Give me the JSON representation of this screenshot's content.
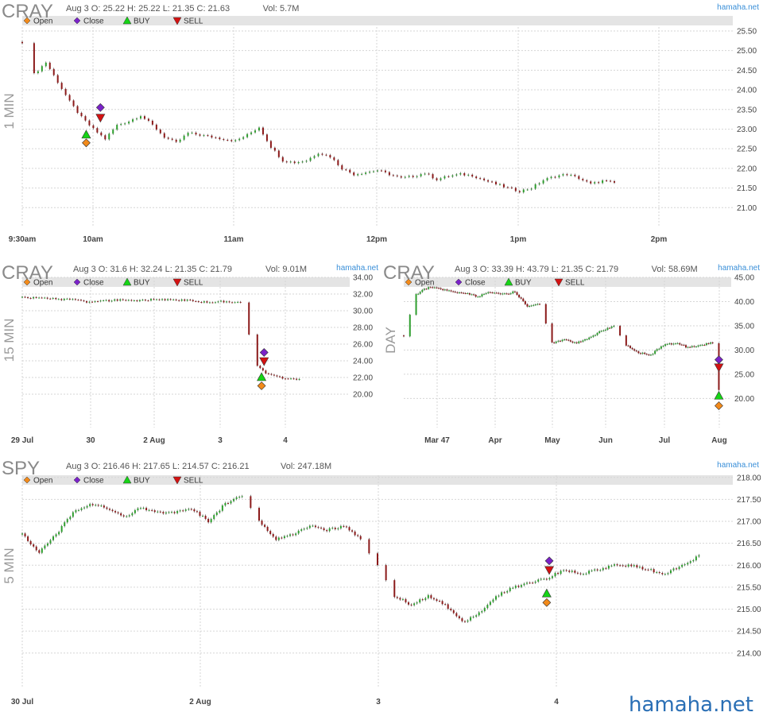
{
  "footer": {
    "brand": "hamaha.net"
  },
  "legend": {
    "open": "Open",
    "close": "Close",
    "buy": "BUY",
    "sell": "SELL"
  },
  "colors": {
    "up": "#2e9e2e",
    "down": "#8b1a1a",
    "open_marker": "#f28a1a",
    "close_marker": "#7a22c8",
    "buy": "#16d416",
    "sell": "#d41212",
    "legend_bar": "#e4e4e4",
    "grid": "#d6d6d6",
    "brand": "#3a8fd8"
  },
  "chart_data": [
    {
      "id": "cray-1min",
      "type": "candlestick",
      "ticker": "CRAY",
      "timeframe": "1 MIN",
      "info": {
        "date": "Aug 3",
        "open": "O: 25.22",
        "high": "H: 25.22",
        "low": "L: 21.35",
        "close": "C: 21.63",
        "vol": "Vol: 5.7M"
      },
      "brand": "hamaha.net",
      "x_labels": [
        "9:30am",
        "10am",
        "11am",
        "12pm",
        "1pm",
        "2pm"
      ],
      "y_labels": [
        "25.50",
        "25.00",
        "24.50",
        "24.00",
        "23.50",
        "23.00",
        "22.50",
        "22.00",
        "21.50",
        "21.00"
      ],
      "ylim": [
        20.5,
        25.6
      ],
      "series": [
        [
          0,
          25.22
        ],
        [
          1,
          24.4
        ],
        [
          2,
          24.7
        ],
        [
          3,
          24.2
        ],
        [
          4,
          23.7
        ],
        [
          5,
          23.3
        ],
        [
          6,
          23.0
        ],
        [
          7,
          22.75
        ],
        [
          8,
          23.1
        ],
        [
          9,
          23.2
        ],
        [
          10,
          23.35
        ],
        [
          11,
          23.1
        ],
        [
          12,
          22.8
        ],
        [
          13,
          22.65
        ],
        [
          14,
          22.9
        ],
        [
          15,
          22.85
        ],
        [
          16,
          22.8
        ],
        [
          17,
          22.75
        ],
        [
          18,
          22.7
        ],
        [
          19,
          22.85
        ],
        [
          20,
          23.05
        ],
        [
          21,
          22.55
        ],
        [
          22,
          22.2
        ],
        [
          23,
          22.15
        ],
        [
          24,
          22.2
        ],
        [
          25,
          22.4
        ],
        [
          26,
          22.3
        ],
        [
          27,
          22.0
        ],
        [
          28,
          21.85
        ],
        [
          29,
          21.9
        ],
        [
          30,
          21.95
        ],
        [
          31,
          21.85
        ],
        [
          32,
          21.75
        ],
        [
          33,
          21.8
        ],
        [
          34,
          21.88
        ],
        [
          35,
          21.72
        ],
        [
          36,
          21.8
        ],
        [
          37,
          21.85
        ],
        [
          38,
          21.82
        ],
        [
          39,
          21.7
        ],
        [
          40,
          21.6
        ],
        [
          41,
          21.5
        ],
        [
          42,
          21.42
        ],
        [
          43,
          21.5
        ],
        [
          44,
          21.7
        ],
        [
          45,
          21.8
        ],
        [
          46,
          21.85
        ],
        [
          47,
          21.75
        ],
        [
          48,
          21.6
        ],
        [
          49,
          21.68
        ],
        [
          50,
          21.63
        ]
      ],
      "markers": {
        "open_x": 5.4,
        "open_y": 22.65,
        "buy_x": 5.4,
        "buy_y": 22.85,
        "close_x": 6.6,
        "close_y": 23.55,
        "sell_x": 6.6,
        "sell_y": 23.3
      }
    },
    {
      "id": "cray-15min",
      "type": "candlestick",
      "ticker": "CRAY",
      "timeframe": "15 MIN",
      "info": {
        "date": "Aug 3",
        "open": "O: 31.6",
        "high": "H: 32.24",
        "low": "L: 21.35",
        "close": "C: 21.79",
        "vol": "Vol: 9.01M"
      },
      "brand": "hamaha.net",
      "x_labels": [
        "29 Jul",
        "30",
        "2 Aug",
        "3",
        "4"
      ],
      "y_labels": [
        "34.00",
        "32.00",
        "30.00",
        "28.00",
        "26.00",
        "24.00",
        "22.00",
        "20.00"
      ],
      "ylim": [
        16.0,
        34.0
      ],
      "series": [
        [
          0,
          31.6
        ],
        [
          2,
          31.5
        ],
        [
          4,
          31.4
        ],
        [
          6,
          31.3
        ],
        [
          8,
          31.0
        ],
        [
          10,
          31.2
        ],
        [
          12,
          31.3
        ],
        [
          14,
          31.2
        ],
        [
          16,
          31.4
        ],
        [
          18,
          31.3
        ],
        [
          20,
          31.2
        ],
        [
          22,
          31.0
        ],
        [
          24,
          31.1
        ],
        [
          26,
          31.0
        ],
        [
          28,
          23.5
        ],
        [
          29,
          22.5
        ],
        [
          31,
          21.9
        ],
        [
          33,
          21.79
        ]
      ],
      "markers": {
        "open_x": 28.5,
        "open_y": 21.0,
        "buy_x": 28.5,
        "buy_y": 22.0,
        "close_x": 28.8,
        "close_y": 25.0,
        "sell_x": 28.8,
        "sell_y": 24.0
      }
    },
    {
      "id": "cray-day",
      "type": "candlestick",
      "ticker": "CRAY",
      "timeframe": "DAY",
      "info": {
        "date": "Aug 3",
        "open": "O: 33.39",
        "high": "H: 43.79",
        "low": "L: 21.35",
        "close": "C: 21.79",
        "vol": "Vol: 58.69M"
      },
      "brand": "hamaha.net",
      "x_labels": [
        "Mar 47",
        "Apr",
        "May",
        "Jun",
        "Jul",
        "Aug"
      ],
      "y_labels": [
        "45.00",
        "40.00",
        "35.00",
        "30.00",
        "25.00",
        "20.00"
      ],
      "ylim": [
        14.0,
        45.0
      ],
      "series": [
        [
          0,
          33.0
        ],
        [
          2,
          41.5
        ],
        [
          4,
          43.0
        ],
        [
          6,
          42.6
        ],
        [
          8,
          42.0
        ],
        [
          10,
          41.8
        ],
        [
          12,
          41.0
        ],
        [
          14,
          42.0
        ],
        [
          16,
          41.5
        ],
        [
          18,
          42.0
        ],
        [
          20,
          39.0
        ],
        [
          22,
          39.5
        ],
        [
          24,
          31.5
        ],
        [
          26,
          32.0
        ],
        [
          28,
          31.5
        ],
        [
          30,
          32.5
        ],
        [
          32,
          34.0
        ],
        [
          34,
          35.0
        ],
        [
          36,
          31.0
        ],
        [
          38,
          29.5
        ],
        [
          40,
          29.0
        ],
        [
          42,
          31.0
        ],
        [
          44,
          31.5
        ],
        [
          46,
          30.5
        ],
        [
          48,
          31.0
        ],
        [
          50,
          31.5
        ],
        [
          51,
          21.79
        ]
      ],
      "markers": {
        "open_x": 51,
        "open_y": 18.5,
        "buy_x": 51,
        "buy_y": 20.5,
        "close_x": 51,
        "close_y": 28.0,
        "sell_x": 51,
        "sell_y": 26.5
      }
    },
    {
      "id": "spy-5min",
      "type": "candlestick",
      "ticker": "SPY",
      "timeframe": "5 MIN",
      "info": {
        "date": "Aug 3",
        "open": "O: 216.46",
        "high": "H: 217.65",
        "low": "L: 214.57",
        "close": "C: 216.21",
        "vol": "Vol: 247.18M"
      },
      "brand": "hamaha.net",
      "x_labels": [
        "30 Jul",
        "2 Aug",
        "3",
        "4"
      ],
      "y_labels": [
        "218.00",
        "217.50",
        "217.00",
        "216.50",
        "216.00",
        "215.50",
        "215.00",
        "214.50",
        "214.00"
      ],
      "ylim": [
        213.2,
        218.05
      ],
      "series": [
        [
          0,
          216.7
        ],
        [
          2,
          216.3
        ],
        [
          4,
          216.7
        ],
        [
          6,
          217.2
        ],
        [
          8,
          217.4
        ],
        [
          10,
          217.3
        ],
        [
          12,
          217.1
        ],
        [
          14,
          217.3
        ],
        [
          16,
          217.2
        ],
        [
          18,
          217.2
        ],
        [
          20,
          217.3
        ],
        [
          22,
          217.0
        ],
        [
          24,
          217.4
        ],
        [
          26,
          217.6
        ],
        [
          28,
          217.0
        ],
        [
          30,
          216.6
        ],
        [
          32,
          216.7
        ],
        [
          34,
          216.9
        ],
        [
          36,
          216.8
        ],
        [
          38,
          216.9
        ],
        [
          40,
          216.6
        ],
        [
          42,
          216.0
        ],
        [
          44,
          215.3
        ],
        [
          46,
          215.1
        ],
        [
          48,
          215.3
        ],
        [
          50,
          215.1
        ],
        [
          52,
          214.7
        ],
        [
          54,
          214.9
        ],
        [
          56,
          215.3
        ],
        [
          58,
          215.5
        ],
        [
          60,
          215.6
        ],
        [
          62,
          215.7
        ],
        [
          64,
          215.9
        ],
        [
          66,
          215.8
        ],
        [
          68,
          215.9
        ],
        [
          70,
          216.0
        ],
        [
          72,
          216.0
        ],
        [
          74,
          215.9
        ],
        [
          76,
          215.8
        ],
        [
          78,
          216.0
        ],
        [
          80,
          216.21
        ]
      ],
      "markers": {
        "open_x": 62,
        "open_y": 215.15,
        "buy_x": 62,
        "buy_y": 215.35,
        "close_x": 62.3,
        "close_y": 216.1,
        "sell_x": 62.3,
        "sell_y": 215.9
      }
    }
  ]
}
